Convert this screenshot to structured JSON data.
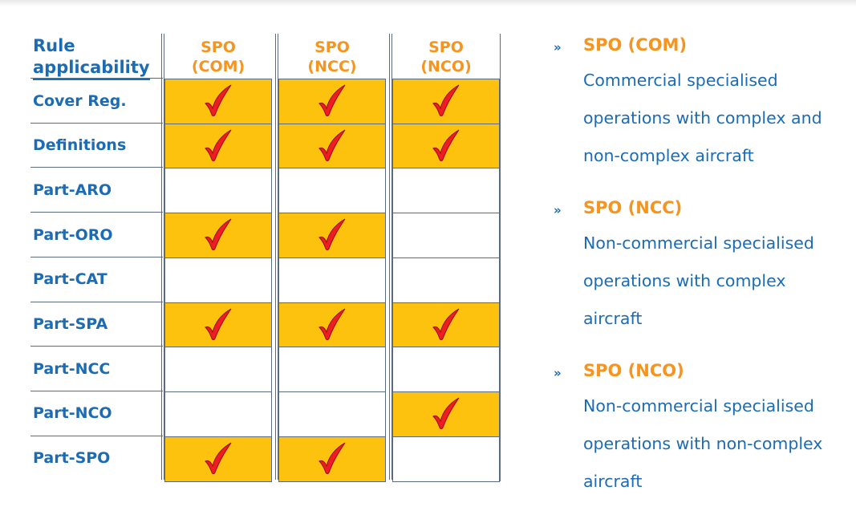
{
  "table": {
    "header_label": [
      "Rule",
      "applicability"
    ],
    "columns": [
      {
        "line1": "SPO",
        "line2": "(COM)"
      },
      {
        "line1": "SPO",
        "line2": "(NCC)"
      },
      {
        "line1": "SPO",
        "line2": "(NCO)"
      }
    ],
    "rows": [
      {
        "label": "Cover Reg.",
        "checks": [
          true,
          true,
          true
        ]
      },
      {
        "label": "Definitions",
        "checks": [
          true,
          true,
          true
        ]
      },
      {
        "label": "Part-ARO",
        "checks": [
          false,
          false,
          false
        ]
      },
      {
        "label": "Part-ORO",
        "checks": [
          true,
          true,
          false
        ]
      },
      {
        "label": "Part-CAT",
        "checks": [
          false,
          false,
          false
        ]
      },
      {
        "label": "Part-SPA",
        "checks": [
          true,
          true,
          true
        ]
      },
      {
        "label": "Part-NCC",
        "checks": [
          false,
          false,
          false
        ]
      },
      {
        "label": "Part-NCO",
        "checks": [
          false,
          false,
          true
        ]
      },
      {
        "label": "Part-SPO",
        "checks": [
          true,
          true,
          false
        ]
      }
    ]
  },
  "legend": [
    {
      "title": "SPO (COM)",
      "lines": [
        "Commercial specialised",
        "operations with complex and",
        "non-complex aircraft"
      ]
    },
    {
      "title": "SPO (NCC)",
      "lines": [
        "Non-commercial specialised",
        "operations with complex",
        "aircraft"
      ]
    },
    {
      "title": "SPO (NCO)",
      "lines": [
        "Non-commercial specialised",
        "operations with non-complex",
        "aircraft"
      ]
    }
  ],
  "colors": {
    "check": "#ee1c25",
    "cell_on": "#fdc20d",
    "text_blue": "#1b6bb5",
    "text_orange": "#f7941d"
  },
  "icons": {
    "check": "check-mark-icon",
    "bullet": "chevron-bullet-icon"
  }
}
